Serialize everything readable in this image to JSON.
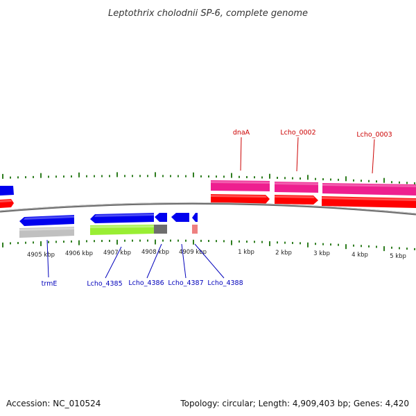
{
  "title": "Leptothrix cholodnii SP-6, complete genome",
  "footer": {
    "accession": "Accession: NC_010524",
    "summary": "Topology: circular; Length: 4,909,403 bp; Genes: 4,420"
  },
  "colors": {
    "backbone": "#6e6e6e",
    "ticks": "#2e7d1f",
    "forward_cds": "#ff0000",
    "forward_gene": "#ee1f8f",
    "reverse_cds": "#0000ee",
    "label_forward": "#cc0000",
    "label_reverse": "#0000bb"
  },
  "tick_labels": [
    "4905 kbp",
    "4906 kbp",
    "4907 kbp",
    "4908 kbp",
    "4909 kbp",
    "1 kbp",
    "2 kbp",
    "3 kbp",
    "4 kbp",
    "5 kbp"
  ],
  "gene_labels_top": [
    "dnaA",
    "Lcho_0002",
    "Lcho_0003"
  ],
  "gene_labels_bottom": [
    "trmE",
    "Lcho_4385",
    "Lcho_4386",
    "Lcho_4387",
    "Lcho_4388"
  ]
}
